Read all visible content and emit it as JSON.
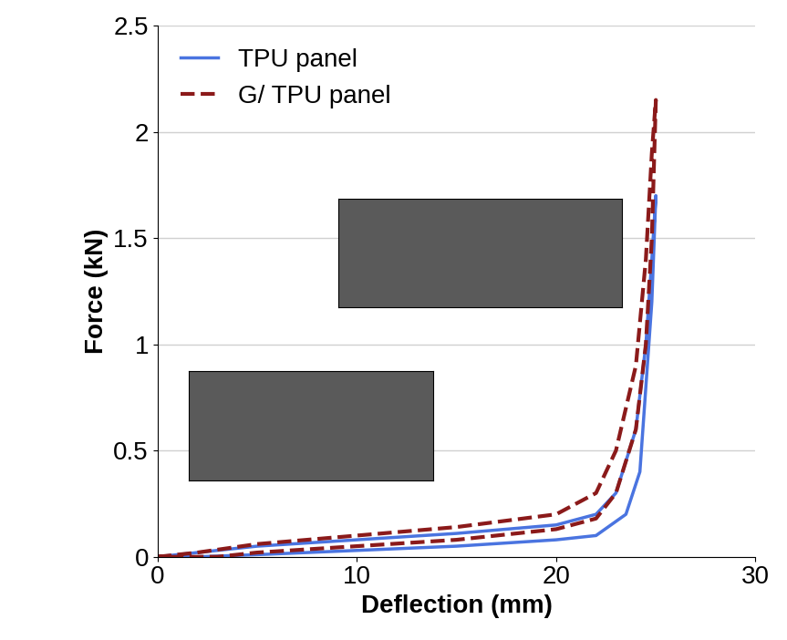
{
  "chart_data": {
    "type": "line",
    "x_label": "Deflection (mm)",
    "y_label": "Force (kN)",
    "xlim": [
      0,
      30
    ],
    "xticks": [
      0,
      10,
      20,
      30
    ],
    "ylim": [
      0,
      2.5
    ],
    "yticks": [
      0,
      0.5,
      1,
      1.5,
      2,
      2.5
    ],
    "grid": true,
    "legend": "upper left",
    "series": [
      {
        "name": "TPU panel",
        "color": "#4a74e0",
        "line_style": "solid",
        "x": [
          0,
          2,
          5,
          10,
          15,
          20,
          22,
          23,
          24,
          24.5,
          24.8,
          25,
          24.8,
          24.5,
          24.2,
          23.5,
          22,
          20,
          15,
          10,
          5,
          2,
          0
        ],
        "values": [
          0,
          0.02,
          0.05,
          0.08,
          0.11,
          0.15,
          0.2,
          0.3,
          0.6,
          1.0,
          1.4,
          1.7,
          1.2,
          0.8,
          0.4,
          0.2,
          0.1,
          0.08,
          0.05,
          0.03,
          0.01,
          0,
          0
        ]
      },
      {
        "name": "G/ TPU panel",
        "color": "#8b1a1a",
        "line_style": "dashed",
        "x": [
          0,
          2,
          5,
          10,
          15,
          20,
          22,
          23,
          24,
          24.5,
          24.8,
          25,
          24.8,
          24.5,
          24,
          23,
          22,
          20,
          15,
          10,
          5,
          3,
          0
        ],
        "values": [
          0,
          0.02,
          0.06,
          0.1,
          0.14,
          0.2,
          0.3,
          0.5,
          0.9,
          1.4,
          1.9,
          2.15,
          1.5,
          1.0,
          0.6,
          0.3,
          0.18,
          0.13,
          0.08,
          0.05,
          0.02,
          0,
          0
        ]
      }
    ]
  }
}
